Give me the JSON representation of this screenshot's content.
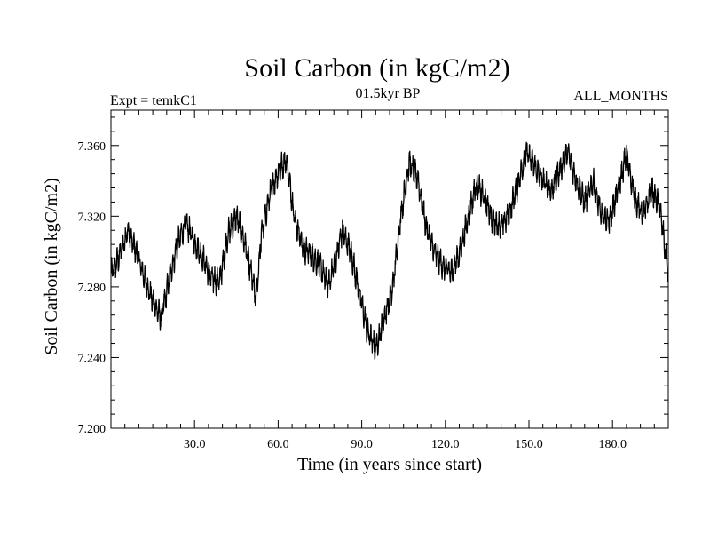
{
  "chart_data": {
    "type": "line",
    "title": "Soil Carbon (in kgC/m2)",
    "left_subtitle": "Expt = temkC1",
    "center_subtitle": "01.5kyr BP",
    "right_subtitle": "ALL_MONTHS",
    "xlabel": "Time (in years since start)",
    "ylabel": "Soil Carbon (in kgC/m2)",
    "xlim": [
      0,
      200
    ],
    "ylim": [
      7.2,
      7.38
    ],
    "x_ticks": [
      30,
      60,
      90,
      120,
      150,
      180
    ],
    "x_tick_labels": [
      "30.0",
      "60.0",
      "90.0",
      "120.0",
      "150.0",
      "180.0"
    ],
    "y_ticks": [
      7.2,
      7.24,
      7.28,
      7.32,
      7.36
    ],
    "y_tick_labels": [
      "7.200",
      "7.240",
      "7.280",
      "7.320",
      "7.360"
    ],
    "series": [
      {
        "name": "Soil Carbon",
        "color": "#000000",
        "x": [
          0,
          3,
          6,
          9,
          12,
          15,
          18,
          21,
          24,
          27,
          30,
          33,
          36,
          39,
          42,
          45,
          48,
          51,
          52,
          54,
          57,
          60,
          63,
          66,
          69,
          72,
          75,
          78,
          81,
          83,
          86,
          89,
          92,
          95,
          98,
          101,
          104,
          107,
          110,
          113,
          116,
          119,
          122,
          125,
          128,
          131,
          134,
          137,
          140,
          143,
          146,
          149,
          152,
          155,
          158,
          161,
          164,
          167,
          170,
          173,
          176,
          179,
          182,
          185,
          188,
          191,
          194,
          197,
          200
        ],
        "values": [
          7.287,
          7.297,
          7.312,
          7.3,
          7.285,
          7.272,
          7.262,
          7.285,
          7.305,
          7.316,
          7.305,
          7.296,
          7.285,
          7.283,
          7.31,
          7.32,
          7.305,
          7.282,
          7.272,
          7.31,
          7.332,
          7.345,
          7.352,
          7.318,
          7.302,
          7.298,
          7.292,
          7.28,
          7.298,
          7.312,
          7.3,
          7.278,
          7.255,
          7.245,
          7.262,
          7.278,
          7.32,
          7.35,
          7.342,
          7.315,
          7.3,
          7.292,
          7.288,
          7.298,
          7.318,
          7.338,
          7.33,
          7.318,
          7.314,
          7.322,
          7.338,
          7.356,
          7.348,
          7.34,
          7.334,
          7.346,
          7.356,
          7.34,
          7.328,
          7.34,
          7.32,
          7.318,
          7.335,
          7.355,
          7.33,
          7.32,
          7.335,
          7.325,
          7.286
        ],
        "noise_amplitude": 0.008
      }
    ]
  }
}
